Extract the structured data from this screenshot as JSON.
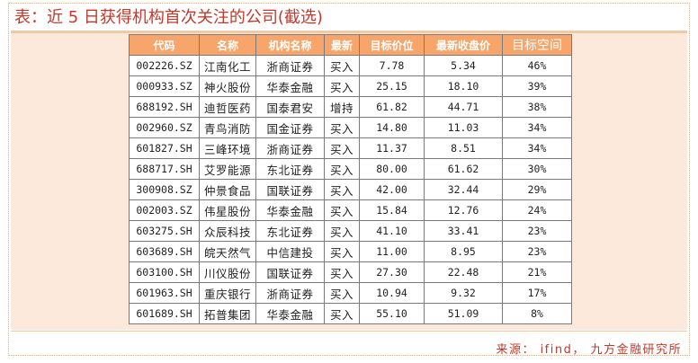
{
  "title": "表：近 5 日获得机构首次关注的公司(截选)",
  "table": {
    "headers": [
      "代码",
      "名称",
      "机构名称",
      "最新",
      "目标价位",
      "最新收盘价",
      "目标空间"
    ],
    "rows": [
      [
        "002226.SZ",
        "江南化工",
        "浙商证券",
        "买入",
        "7.78",
        "5.34",
        "46%"
      ],
      [
        "000933.SZ",
        "神火股份",
        "华泰金融",
        "买入",
        "25.15",
        "18.10",
        "39%"
      ],
      [
        "688192.SH",
        "迪哲医药",
        "国泰君安",
        "增持",
        "61.82",
        "44.71",
        "38%"
      ],
      [
        "002960.SZ",
        "青鸟消防",
        "国金证券",
        "买入",
        "14.80",
        "11.03",
        "34%"
      ],
      [
        "601827.SH",
        "三峰环境",
        "浙商证券",
        "买入",
        "11.37",
        "8.51",
        "34%"
      ],
      [
        "688717.SH",
        "艾罗能源",
        "东北证券",
        "买入",
        "80.00",
        "61.62",
        "30%"
      ],
      [
        "300908.SZ",
        "仲景食品",
        "国联证券",
        "买入",
        "42.00",
        "32.44",
        "29%"
      ],
      [
        "002003.SZ",
        "伟星股份",
        "华泰金融",
        "买入",
        "15.84",
        "12.76",
        "24%"
      ],
      [
        "603275.SH",
        "众辰科技",
        "东北证券",
        "买入",
        "41.10",
        "33.41",
        "23%"
      ],
      [
        "603689.SH",
        "皖天然气",
        "中信建投",
        "买入",
        "11.00",
        "8.95",
        "23%"
      ],
      [
        "603100.SH",
        "川仪股份",
        "国联证券",
        "买入",
        "27.30",
        "22.48",
        "21%"
      ],
      [
        "601963.SH",
        "重庆银行",
        "浙商证券",
        "买入",
        "10.94",
        "9.32",
        "17%"
      ],
      [
        "601689.SH",
        "拓普集团",
        "华泰金融",
        "买入",
        "55.10",
        "51.09",
        "8%"
      ]
    ]
  },
  "source": "来源： ifind， 九方金融研究所",
  "colors": {
    "accent": "#c0392b",
    "header_bg": "#f7a56a",
    "panel_bg": "#fce9dc"
  }
}
